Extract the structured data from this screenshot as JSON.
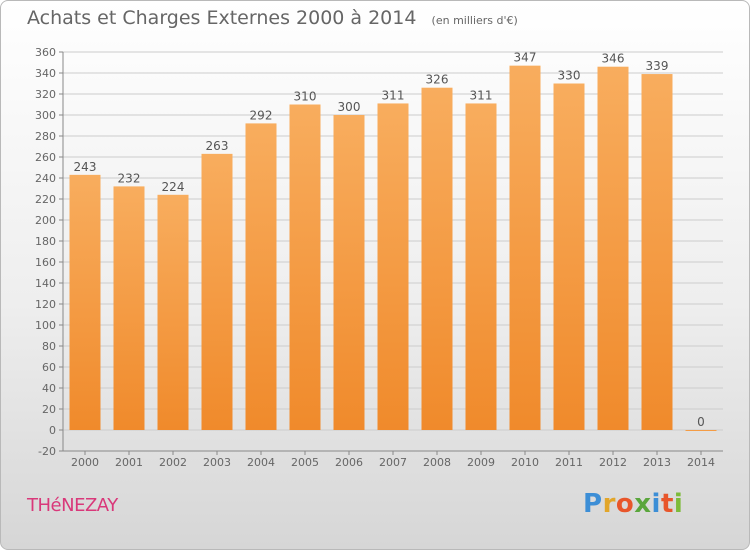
{
  "title": "Achats et Charges Externes 2000 à 2014",
  "unit_note": "(en milliers d'€)",
  "place": "THéNEZAY",
  "brand": {
    "letters": [
      "P",
      "r",
      "o",
      "x",
      "i",
      "t",
      "i"
    ],
    "colors": [
      "#3c8ed6",
      "#e2a62a",
      "#e8562b",
      "#5aa63c",
      "#3c8ed6",
      "#e8562b",
      "#7dbb3a"
    ]
  },
  "colors": {
    "bar": "#f08a2b",
    "bar_light": "#f8ad5e",
    "text": "#666666",
    "town": "#d9387a"
  },
  "chart_data": {
    "type": "bar",
    "title": "Achats et Charges Externes 2000 à 2014",
    "subtitle": "(en milliers d'€)",
    "categories": [
      "2000",
      "2001",
      "2002",
      "2003",
      "2004",
      "2005",
      "2006",
      "2007",
      "2008",
      "2009",
      "2010",
      "2011",
      "2012",
      "2013",
      "2014"
    ],
    "values": [
      243,
      232,
      224,
      263,
      292,
      310,
      300,
      311,
      326,
      311,
      347,
      330,
      346,
      339,
      0
    ],
    "ylim": [
      -20,
      360
    ],
    "yticks": [
      -20,
      0,
      20,
      40,
      60,
      80,
      100,
      120,
      140,
      160,
      180,
      200,
      220,
      240,
      260,
      280,
      300,
      320,
      340,
      360
    ],
    "grid": true,
    "legend": "none"
  }
}
